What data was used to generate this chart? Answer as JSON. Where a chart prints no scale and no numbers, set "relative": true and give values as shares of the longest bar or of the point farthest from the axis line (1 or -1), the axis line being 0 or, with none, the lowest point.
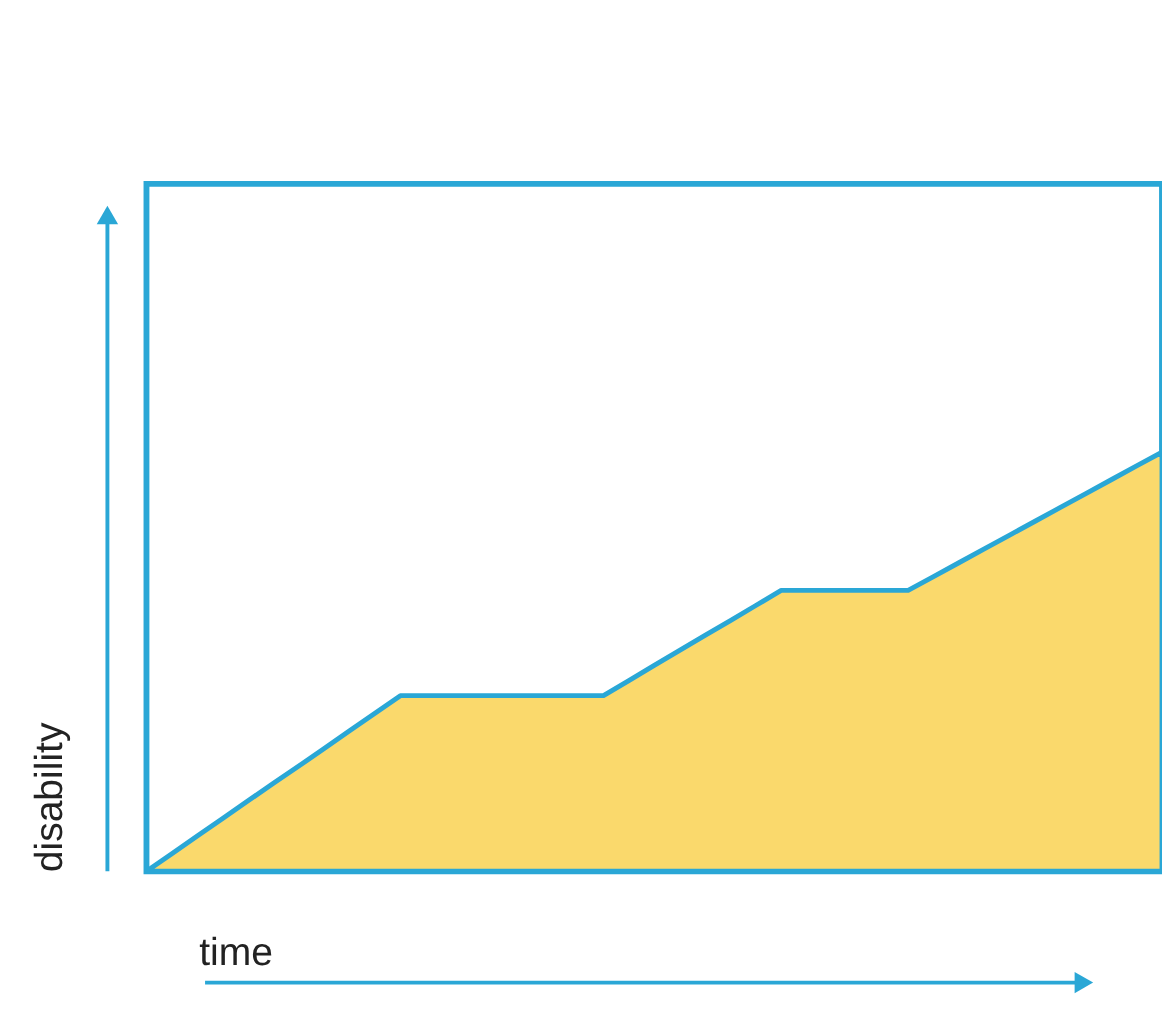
{
  "chart_data": {
    "type": "area",
    "relative": true,
    "xlabel": "time",
    "ylabel": "disability",
    "tick_labels": false,
    "categories": [
      null,
      null,
      null,
      null,
      null,
      null,
      null,
      null,
      null,
      null,
      null,
      null,
      null,
      null,
      null,
      null,
      null,
      null,
      null,
      null,
      null,
      null,
      null,
      null,
      null,
      null,
      null,
      null,
      null,
      null,
      null,
      null,
      null,
      null,
      null,
      null,
      null,
      null,
      null,
      null,
      null
    ],
    "series": [
      {
        "color": "#fad96c",
        "values": [
          0,
          0.042,
          0.084,
          0.126,
          0.168,
          0.21,
          0.251,
          0.293,
          0.335,
          0.377,
          0.419,
          0.419,
          0.419,
          0.419,
          0.419,
          0.419,
          0.419,
          0.419,
          0.419,
          0.455,
          0.491,
          0.527,
          0.563,
          0.598,
          0.634,
          0.67,
          0.67,
          0.67,
          0.67,
          0.67,
          0.67,
          0.703,
          0.736,
          0.769,
          0.802,
          0.835,
          0.868,
          0.901,
          0.934,
          0.967,
          1
        ]
      }
    ]
  }
}
